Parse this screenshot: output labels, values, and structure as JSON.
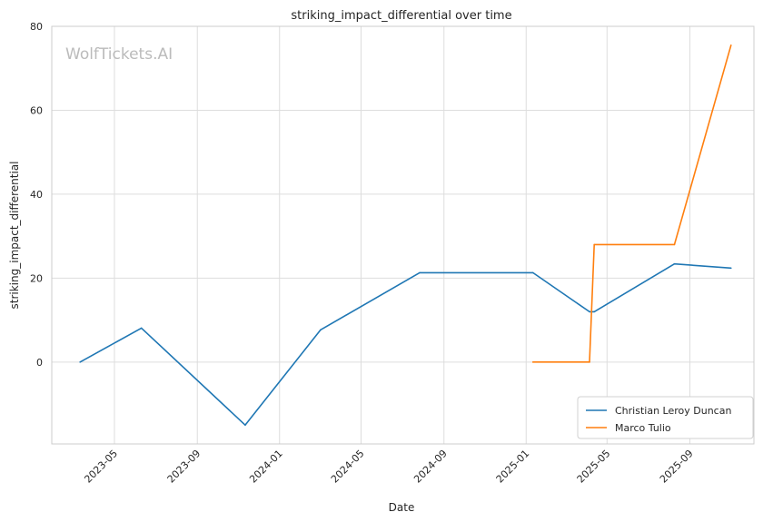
{
  "chart_data": {
    "type": "line",
    "title": "striking_impact_differential over time",
    "xlabel": "Date",
    "ylabel": "striking_impact_differential",
    "watermark": "WolfTickets.AI",
    "x_ticks": [
      "2023-05",
      "2023-09",
      "2024-01",
      "2024-05",
      "2024-09",
      "2025-01",
      "2025-05",
      "2025-09"
    ],
    "y_ticks": [
      0,
      20,
      40,
      60,
      80
    ],
    "xlim": [
      "2023-01-28",
      "2025-12-05"
    ],
    "ylim": [
      -19.5,
      80
    ],
    "grid": true,
    "legend_position": "lower-right",
    "series": [
      {
        "name": "Christian Leroy Duncan",
        "color": "#1f77b4",
        "points": [
          {
            "x": "2023-03-11",
            "y": 0
          },
          {
            "x": "2023-06-10",
            "y": 8.1
          },
          {
            "x": "2023-11-11",
            "y": -15
          },
          {
            "x": "2024-03-02",
            "y": 7.7
          },
          {
            "x": "2024-07-27",
            "y": 21.3
          },
          {
            "x": "2025-01-11",
            "y": 21.3
          },
          {
            "x": "2025-04-05",
            "y": 12
          },
          {
            "x": "2025-04-12",
            "y": 12
          },
          {
            "x": "2025-08-09",
            "y": 23.4
          },
          {
            "x": "2025-11-01",
            "y": 22.4
          }
        ]
      },
      {
        "name": "Marco Tulio",
        "color": "#ff7f0e",
        "points": [
          {
            "x": "2025-01-11",
            "y": 0
          },
          {
            "x": "2025-04-05",
            "y": 0
          },
          {
            "x": "2025-04-12",
            "y": 28
          },
          {
            "x": "2025-08-09",
            "y": 28
          },
          {
            "x": "2025-11-01",
            "y": 75.5
          }
        ]
      }
    ]
  }
}
